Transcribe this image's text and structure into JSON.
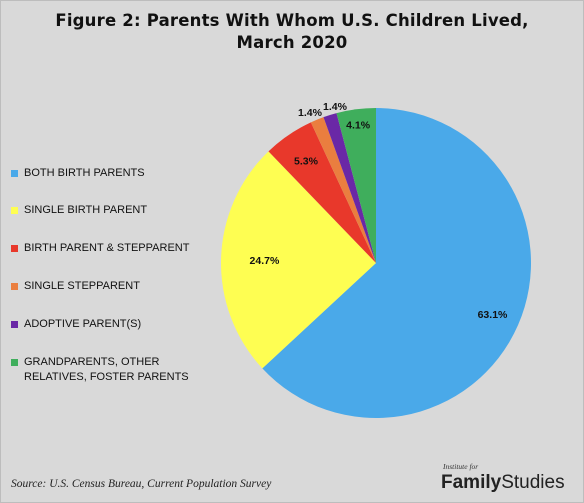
{
  "title_line1": "Figure 2: Parents With Whom U.S. Children Lived,",
  "title_line2": "March 2020",
  "source": "Source: U.S. Census Bureau, Current Population Survey",
  "logo": {
    "small_text": "Institute for",
    "brand_bold": "Family",
    "brand_light": "Studies"
  },
  "chart_data": {
    "type": "pie",
    "title": "Figure 2: Parents With Whom U.S. Children Lived, March 2020",
    "legend_position": "left",
    "start_angle_deg": 0,
    "direction": "clockwise",
    "slices": [
      {
        "label": "BOTH BIRTH PARENTS",
        "value": 63.1,
        "display": "63.1%",
        "color": "#4aa9e9"
      },
      {
        "label": "SINGLE BIRTH PARENT",
        "value": 24.7,
        "display": "24.7%",
        "color": "#fefe52"
      },
      {
        "label": "BIRTH PARENT & STEPPARENT",
        "value": 5.3,
        "display": "5.3%",
        "color": "#e8382b"
      },
      {
        "label": "SINGLE STEPPARENT",
        "value": 1.4,
        "display": "1.4%",
        "color": "#ea7e3f"
      },
      {
        "label": "ADOPTIVE PARENT(S)",
        "value": 1.4,
        "display": "1.4%",
        "color": "#6a28a6"
      },
      {
        "label": "GRANDPARENTS, OTHER RELATIVES, FOSTER PARENTS",
        "value": 4.1,
        "display": "4.1%",
        "color": "#3fae5c"
      }
    ]
  }
}
